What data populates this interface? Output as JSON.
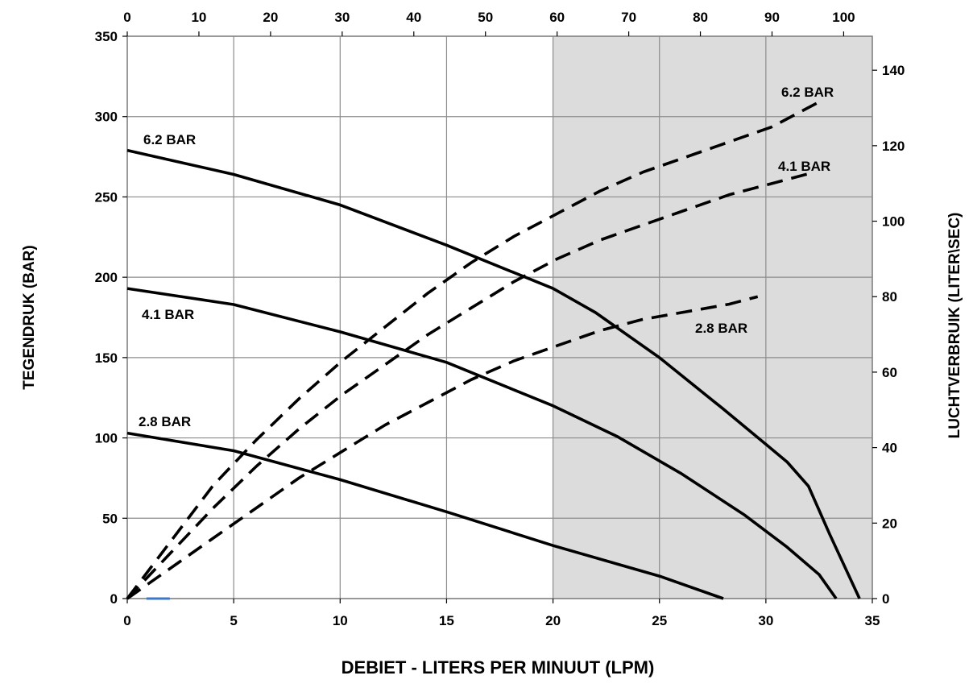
{
  "chart_data": {
    "type": "line",
    "title": "",
    "xlabel": "DEBIET - LITERS PER MINUUT (LPM)",
    "ylabel": "TEGENDRUK (BAR)",
    "y2label": "LUCHTVERBRUIK (LITER\\SEC)",
    "xlim": [
      0,
      35
    ],
    "ylim": [
      0,
      350
    ],
    "x2lim": [
      0,
      104
    ],
    "y2lim": [
      0,
      149
    ],
    "x_ticks": [
      0,
      5,
      10,
      15,
      20,
      25,
      30,
      35
    ],
    "y_ticks": [
      0,
      50,
      100,
      150,
      200,
      250,
      300,
      350
    ],
    "x2_ticks": [
      0,
      10,
      20,
      30,
      40,
      50,
      60,
      70,
      80,
      90,
      100
    ],
    "y2_ticks": [
      0,
      20,
      40,
      60,
      80,
      100,
      120,
      140
    ],
    "grid": true,
    "shaded_region": {
      "x_from": 20,
      "x_to": 35,
      "color": "#dcdcdc"
    },
    "series": [
      {
        "name": "6.2 BAR",
        "style": "solid",
        "axis": "primary",
        "x": [
          0,
          5,
          10,
          15,
          20,
          22,
          25,
          28,
          30,
          31,
          32,
          33,
          34.4
        ],
        "y": [
          279,
          264,
          245,
          220,
          193,
          178,
          150,
          118,
          96,
          85,
          70,
          40,
          0
        ]
      },
      {
        "name": "4.1 BAR",
        "style": "solid",
        "axis": "primary",
        "x": [
          0,
          5,
          10,
          15,
          20,
          23,
          26,
          29,
          31,
          32.5,
          33.3
        ],
        "y": [
          193,
          183,
          166,
          147,
          120,
          101,
          78,
          52,
          32,
          15,
          0
        ]
      },
      {
        "name": "2.8 BAR",
        "style": "solid",
        "axis": "primary",
        "x": [
          0,
          5,
          10,
          15,
          20,
          25,
          28
        ],
        "y": [
          103,
          92,
          74,
          54,
          33,
          14,
          0
        ]
      },
      {
        "name": "6.2 BAR",
        "style": "dashed",
        "axis": "secondary",
        "x": [
          0,
          6,
          12,
          18,
          24,
          30,
          36,
          42,
          48,
          54,
          60,
          66,
          72,
          78,
          84,
          90,
          97
        ],
        "y": [
          0,
          15,
          30,
          42,
          53,
          63,
          72,
          81,
          89,
          96,
          102,
          108,
          113,
          117,
          121,
          125,
          132
        ]
      },
      {
        "name": "4.1 BAR",
        "style": "dashed",
        "axis": "secondary",
        "x": [
          0,
          6,
          12,
          18,
          24,
          30,
          36,
          42,
          48,
          54,
          60,
          66,
          72,
          78,
          84,
          90,
          96
        ],
        "y": [
          0,
          12,
          24,
          35,
          45,
          54,
          62,
          70,
          77,
          84,
          90,
          95,
          99,
          103,
          107,
          110,
          113
        ]
      },
      {
        "name": "2.8 BAR",
        "style": "dashed",
        "axis": "secondary",
        "x": [
          0,
          6,
          12,
          18,
          24,
          30,
          36,
          42,
          48,
          54,
          60,
          66,
          72,
          78,
          84,
          88
        ],
        "y": [
          0,
          8,
          16,
          24,
          32,
          39,
          46,
          52,
          58,
          63,
          67,
          71,
          74,
          76,
          78,
          80
        ]
      }
    ]
  }
}
